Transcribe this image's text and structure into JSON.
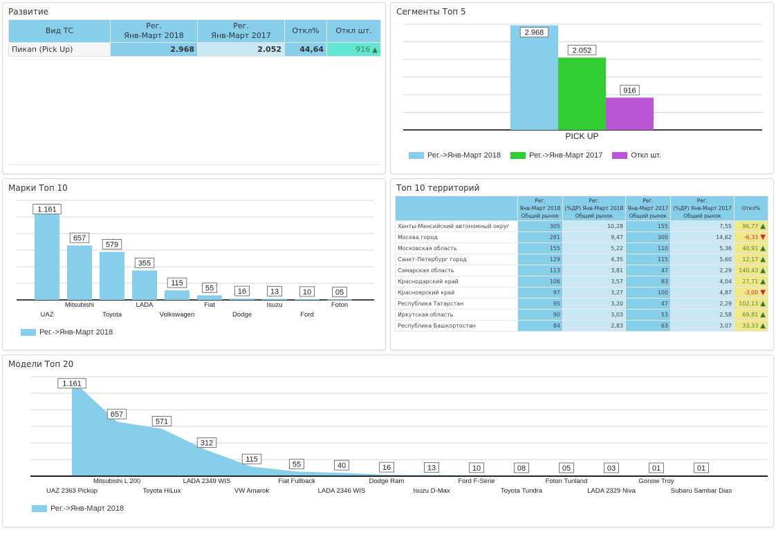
{
  "panels": {
    "development": {
      "title": "Развитие",
      "headers": [
        "Вид ТС",
        "Рег.\nЯнв-Март 2018",
        "Рег.\nЯнв-Март 2017",
        "Откл%",
        "Откл шт."
      ],
      "header_lines": [
        [
          "Вид ТС"
        ],
        [
          "Рег.",
          "Янв-Март 2018"
        ],
        [
          "Рег.",
          "Янв-Март 2017"
        ],
        [
          "Откл%"
        ],
        [
          "Откл шт."
        ]
      ],
      "rows": [
        {
          "type": "Пикап (Pick Up)",
          "reg2018": "2.968",
          "reg2017": "2.052",
          "dev_pct": "44,64",
          "dev_units": "916",
          "trend": "up-arrow-icon"
        }
      ]
    },
    "segments": {
      "title": "Сегменты Топ 5"
    },
    "brands": {
      "title": "Марки Топ 10"
    },
    "territories": {
      "title": "Топ 10 территорий",
      "header_lines": [
        [
          ""
        ],
        [
          "Рег.",
          "Янв-Март 2018",
          "Общий рынок"
        ],
        [
          "Рег.",
          "(%ДР) Янв-Март 2018",
          "Общий рынок"
        ],
        [
          "Рег.",
          "Янв-Март 2017",
          "Общий рынок"
        ],
        [
          "Рег.",
          "(%ДР) Янв-Март 2017",
          "Общий рынок"
        ],
        [
          "Откл%"
        ]
      ],
      "rows": [
        {
          "name": "Ханты-Мансийский автономный округ",
          "r2018": "305",
          "p2018": "10,28",
          "r2017": "155",
          "p2017": "7,55",
          "dev": "96,77",
          "trend": "up"
        },
        {
          "name": "Москва город",
          "r2018": "281",
          "p2018": "9,47",
          "r2017": "300",
          "p2017": "14,62",
          "dev": "-6,33",
          "trend": "down"
        },
        {
          "name": "Московская область",
          "r2018": "155",
          "p2018": "5,22",
          "r2017": "110",
          "p2017": "5,36",
          "dev": "40,91",
          "trend": "up"
        },
        {
          "name": "Санкт-Петербург город",
          "r2018": "129",
          "p2018": "4,35",
          "r2017": "115",
          "p2017": "5,60",
          "dev": "12,17",
          "trend": "up"
        },
        {
          "name": "Самарская область",
          "r2018": "113",
          "p2018": "3,81",
          "r2017": "47",
          "p2017": "2,29",
          "dev": "140,43",
          "trend": "up"
        },
        {
          "name": "Краснодарский край",
          "r2018": "106",
          "p2018": "3,57",
          "r2017": "83",
          "p2017": "4,04",
          "dev": "27,71",
          "trend": "up"
        },
        {
          "name": "Красноярский край",
          "r2018": "97",
          "p2018": "3,27",
          "r2017": "100",
          "p2017": "4,87",
          "dev": "-3,00",
          "trend": "down"
        },
        {
          "name": "Республика Татарстан",
          "r2018": "95",
          "p2018": "3,20",
          "r2017": "47",
          "p2017": "2,29",
          "dev": "102,13",
          "trend": "up"
        },
        {
          "name": "Иркутская область",
          "r2018": "90",
          "p2018": "3,03",
          "r2017": "53",
          "p2017": "2,58",
          "dev": "69,81",
          "trend": "up"
        },
        {
          "name": "Республика Башкортостан",
          "r2018": "84",
          "p2018": "2,83",
          "r2017": "63",
          "p2017": "3,07",
          "dev": "33,33",
          "trend": "up"
        }
      ]
    },
    "models": {
      "title": "Модели Топ 20"
    }
  },
  "icons": {
    "up": "▲",
    "down": "▼"
  },
  "colors": {
    "reg2018": "#87ceeb",
    "reg2017": "#32cd32",
    "dev_units": "#ba55d3",
    "header_bg": "#87ceeb",
    "light_cell": "#c9e8f4",
    "teal_cell": "#64e5d4",
    "yellow_cell": "#f0e68c"
  },
  "chart_data": [
    {
      "id": "segments",
      "type": "bar",
      "title": "Сегменты Топ 5",
      "categories": [
        "PICK UP"
      ],
      "series": [
        {
          "name": "Рег.->Янв-Март 2018",
          "values": [
            2968
          ],
          "labels": [
            "2.968"
          ],
          "color": "#87ceeb"
        },
        {
          "name": "Рег.->Янв-Март 2017",
          "values": [
            2052
          ],
          "labels": [
            "2.052"
          ],
          "color": "#32cd32"
        },
        {
          "name": "Откл шт.",
          "values": [
            916
          ],
          "labels": [
            "916"
          ],
          "color": "#ba55d3"
        }
      ],
      "ylim": [
        0,
        3000
      ],
      "grid": true,
      "legend": "bottom-left"
    },
    {
      "id": "brands",
      "type": "bar",
      "title": "Марки Топ 10",
      "categories": [
        "UAZ",
        "Mitsubishi",
        "Toyota",
        "LADA",
        "Volkswagen",
        "Fiat",
        "Dodge",
        "Isuzu",
        "Ford",
        "Foton"
      ],
      "series": [
        {
          "name": "Рег.->Янв-Март 2018",
          "values": [
            1161,
            657,
            579,
            355,
            115,
            55,
            16,
            13,
            10,
            5
          ],
          "labels": [
            "1.161",
            "657",
            "579",
            "355",
            "115",
            "55",
            "16",
            "13",
            "10",
            "05"
          ],
          "color": "#87ceeb"
        }
      ],
      "ylim": [
        0,
        1200
      ],
      "grid": true,
      "legend": "bottom-left"
    },
    {
      "id": "models",
      "type": "area",
      "title": "Модели Топ 20",
      "categories": [
        "UAZ 2363 Pickup",
        "Mitsubishi L 200",
        "Toyota HiLux",
        "LADA 2349 WIS",
        "VW Amarok",
        "Fiat Fullback",
        "LADA 2346 WIS",
        "Dodge Ram",
        "Isuzu D-Max",
        "Ford F-Serie",
        "Toyota Tundra",
        "Foton Tunland",
        "LADA 2329 Niva",
        "Gonow Troy",
        "Subaru Sambar Dias"
      ],
      "series": [
        {
          "name": "Рег.->Янв-Март 2018",
          "values": [
            1161,
            657,
            571,
            312,
            115,
            55,
            40,
            16,
            13,
            10,
            8,
            5,
            3,
            1,
            1
          ],
          "labels": [
            "1.161",
            "657",
            "571",
            "312",
            "115",
            "55",
            "40",
            "16",
            "13",
            "10",
            "08",
            "05",
            "03",
            "01",
            "01"
          ],
          "color": "#87ceeb"
        }
      ],
      "ylim": [
        0,
        1200
      ],
      "grid": true,
      "legend": "bottom-left"
    }
  ]
}
